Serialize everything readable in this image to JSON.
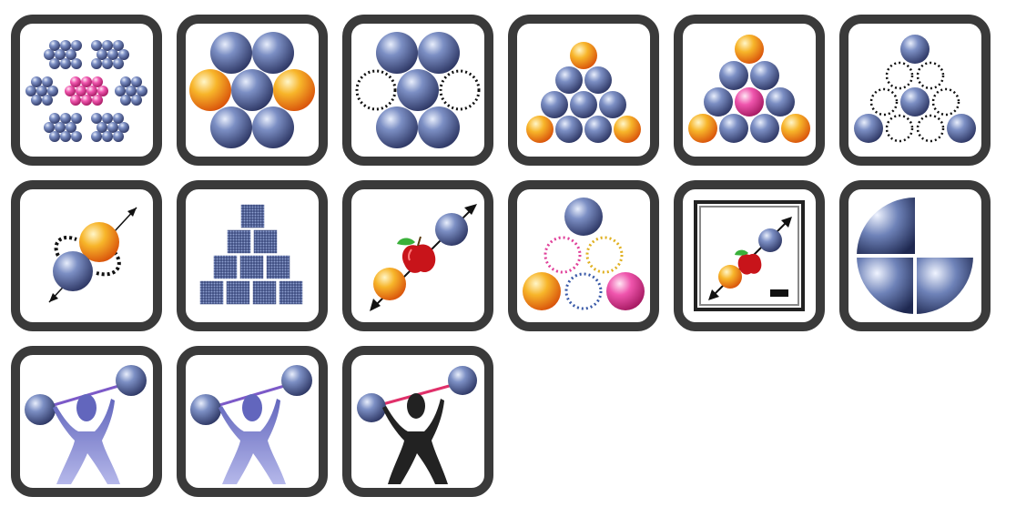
{
  "colors": {
    "frame": "#3a3a3a",
    "tile_bg": "#ffffff",
    "blue_ball": "#5b6fa8",
    "orange_ball": "#f09a1a",
    "pink_ball": "#e0409a",
    "dotted_ring": "#111111",
    "lifter_purple": "#6b6fc0",
    "lifter_black": "#222222"
  },
  "tiles": [
    {
      "icon": "hexagonal-cluster-lattice-icon"
    },
    {
      "icon": "close-packed-spheres-orange-sides-icon"
    },
    {
      "icon": "close-packed-spheres-vacancies-icon"
    },
    {
      "icon": "sphere-pyramid-orange-corners-icon"
    },
    {
      "icon": "sphere-pyramid-pink-center-icon"
    },
    {
      "icon": "sphere-pyramid-vacancies-icon"
    },
    {
      "icon": "binding-pair-dotted-orbits-icon"
    },
    {
      "icon": "cube-pyramid-stack-icon"
    },
    {
      "icon": "apple-between-spheres-icon"
    },
    {
      "icon": "colored-vacancy-pyramid-icon"
    },
    {
      "icon": "framed-apple-spheres-icon"
    },
    {
      "icon": "quartered-sphere-icon"
    },
    {
      "icon": "weightlifter-purple-icon"
    },
    {
      "icon": "weightlifter-purple-icon"
    },
    {
      "icon": "weightlifter-black-icon"
    }
  ]
}
